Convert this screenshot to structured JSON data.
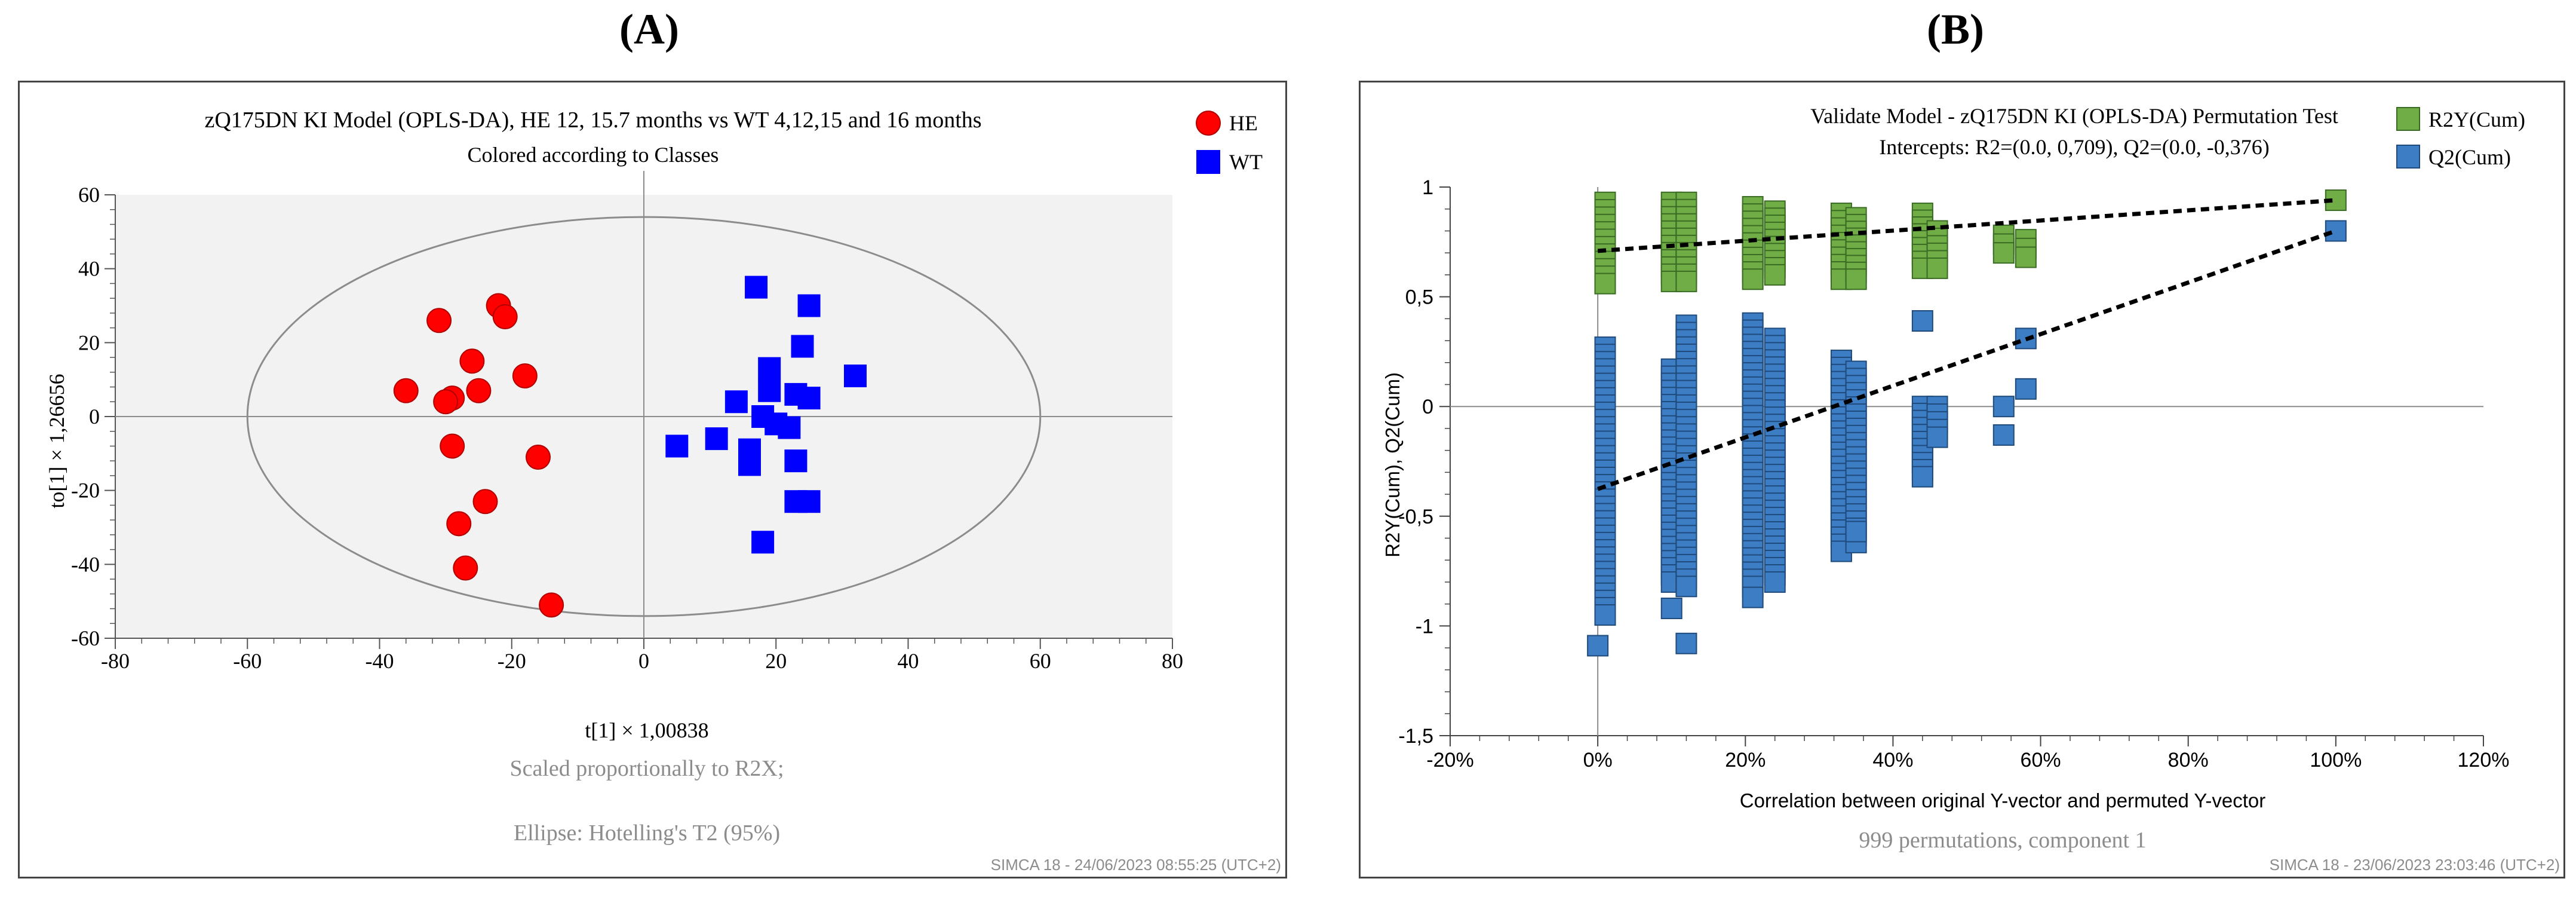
{
  "panels": {
    "a_label": "(A)",
    "b_label": "(B)"
  },
  "chart_data": [
    {
      "type": "scatter",
      "title": "zQ175DN KI Model  (OPLS-DA), HE 12, 15.7 months vs WT 4,12,15 and 16 months",
      "subtitle": "Colored according to Classes",
      "xlabel": "t[1] × 1,00838",
      "ylabel": "to[1] × 1,26656",
      "xlim": [
        -80,
        80
      ],
      "ylim": [
        -60,
        60
      ],
      "xticks": [
        -80,
        -60,
        -40,
        -20,
        0,
        20,
        40,
        60,
        80
      ],
      "yticks": [
        -60,
        -40,
        -20,
        0,
        20,
        40,
        60
      ],
      "legend_position": "top-right",
      "footnote1": "Scaled proportionally to R2X;",
      "footnote2": "Ellipse: Hotelling's T2 (95%)",
      "watermark": "SIMCA 18 - 24/06/2023 08:55:25 (UTC+2)",
      "ellipse": {
        "cx": 0,
        "cy": 0,
        "rx": 60,
        "ry": 54
      },
      "series": [
        {
          "name": "HE",
          "color": "#ff0000",
          "marker": "circle",
          "points": [
            [
              -22,
              30
            ],
            [
              -21,
              27
            ],
            [
              -31,
              26
            ],
            [
              -26,
              15
            ],
            [
              -18,
              11
            ],
            [
              -36,
              7
            ],
            [
              -29,
              5
            ],
            [
              -25,
              7
            ],
            [
              -30,
              4
            ],
            [
              -29,
              -8
            ],
            [
              -16,
              -11
            ],
            [
              -24,
              -23
            ],
            [
              -28,
              -29
            ],
            [
              -27,
              -41
            ],
            [
              -14,
              -51
            ]
          ]
        },
        {
          "name": "WT",
          "color": "#0000ff",
          "marker": "square",
          "points": [
            [
              17,
              35
            ],
            [
              25,
              30
            ],
            [
              24,
              19
            ],
            [
              19,
              13
            ],
            [
              32,
              11
            ],
            [
              19,
              7
            ],
            [
              14,
              4
            ],
            [
              23,
              6
            ],
            [
              25,
              5
            ],
            [
              18,
              0
            ],
            [
              20,
              -2
            ],
            [
              22,
              -3
            ],
            [
              5,
              -8
            ],
            [
              11,
              -6
            ],
            [
              16,
              -9
            ],
            [
              16,
              -13
            ],
            [
              23,
              -12
            ],
            [
              23,
              -23
            ],
            [
              25,
              -23
            ],
            [
              18,
              -34
            ]
          ]
        }
      ]
    },
    {
      "type": "scatter",
      "title": "Validate Model - zQ175DN KI (OPLS-DA) Permutation Test",
      "subtitle": "Intercepts: R2=(0.0, 0,709), Q2=(0.0, -0,376)",
      "xlabel": "Correlation between original Y-vector and permuted Y-vector",
      "ylabel": "R2Y(Cum), Q2(Cum)",
      "xlim": [
        -20,
        120
      ],
      "ylim": [
        -1.5,
        1
      ],
      "xticks": [
        "-20%",
        "0%",
        "20%",
        "40%",
        "60%",
        "80%",
        "100%",
        "120%"
      ],
      "xtick_values": [
        -20,
        0,
        20,
        40,
        60,
        80,
        100,
        120
      ],
      "yticks": [
        "-1,5",
        "-1",
        "-0,5",
        "0",
        "0,5",
        "1"
      ],
      "ytick_values": [
        -1.5,
        -1,
        -0.5,
        0,
        0.5,
        1
      ],
      "legend_position": "top-right",
      "footnote": "999 permutations, component 1",
      "watermark": "SIMCA 18 - 23/06/2023 23:03:46 (UTC+2)",
      "intercepts": {
        "r2": 0.709,
        "q2": -0.376
      },
      "series": [
        {
          "name": "R2Y(Cum)",
          "color": "#70ad47",
          "edge": "#3a6b22",
          "marker": "square",
          "clusters": [
            [
              1,
              0.56,
              0.93
            ],
            [
              10,
              0.57,
              0.93
            ],
            [
              12,
              0.57,
              0.93
            ],
            [
              21,
              0.58,
              0.91
            ],
            [
              24,
              0.6,
              0.89
            ],
            [
              33,
              0.58,
              0.88
            ],
            [
              35,
              0.58,
              0.86
            ],
            [
              44,
              0.63,
              0.88
            ],
            [
              46,
              0.63,
              0.8
            ],
            [
              55,
              0.7,
              0.78
            ],
            [
              58,
              0.68,
              0.76
            ]
          ],
          "points": [
            [
              100,
              0.94
            ]
          ]
        },
        {
          "name": "Q2(Cum)",
          "color": "#3c7dc4",
          "edge": "#1f4a7c",
          "marker": "square",
          "clusters": [
            [
              1,
              -0.95,
              0.27
            ],
            [
              10,
              -0.8,
              0.17
            ],
            [
              12,
              -0.82,
              0.37
            ],
            [
              21,
              -0.82,
              0.38
            ],
            [
              24,
              -0.8,
              0.31
            ],
            [
              33,
              -0.66,
              0.21
            ],
            [
              35,
              -0.62,
              0.16
            ],
            [
              44,
              -0.32,
              0
            ],
            [
              46,
              -0.14,
              0
            ]
          ],
          "points": [
            [
              0,
              -1.09
            ],
            [
              10,
              -0.92
            ],
            [
              12,
              -1.08
            ],
            [
              21,
              -0.87
            ],
            [
              35,
              -0.57
            ],
            [
              44,
              0.39
            ],
            [
              55,
              0
            ],
            [
              55,
              -0.13
            ],
            [
              58,
              0.31
            ],
            [
              58,
              0.08
            ],
            [
              100,
              0.8
            ]
          ]
        }
      ]
    }
  ]
}
